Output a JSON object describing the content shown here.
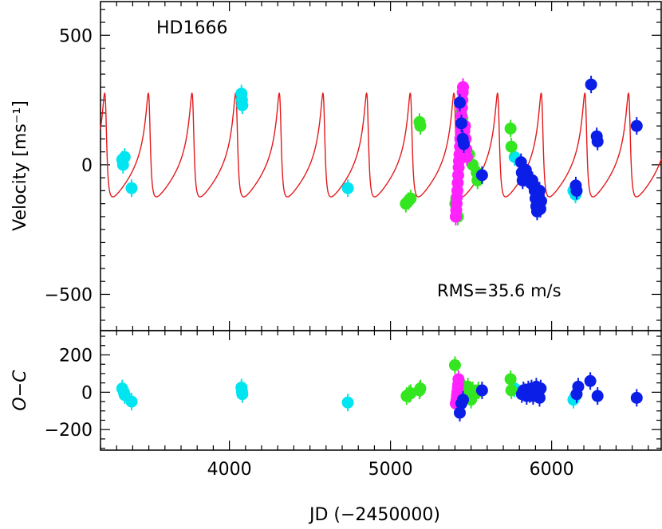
{
  "chart_data": [
    {
      "type": "scatter",
      "panel": "velocity",
      "annotation": "HD1666",
      "rms_label": "RMS=35.6 m/s",
      "ylabel": "Velocity [ms⁻¹]",
      "xlim": [
        3200,
        6680
      ],
      "ylim": [
        -640,
        630
      ],
      "yticks": [
        {
          "v": 500,
          "label": "500"
        },
        {
          "v": 0,
          "label": "0"
        },
        {
          "v": -500,
          "label": "−500"
        }
      ],
      "model": {
        "name": "Keplerian fit",
        "color": "#e31a1c",
        "period_days": 270.9,
        "k": 200,
        "ecc": 0.63,
        "omega_deg": 48,
        "offset": -8,
        "t_peri": 3233
      },
      "series": [
        {
          "color": "#00e5f0",
          "points": [
            [
              3335,
              20
            ],
            [
              3340,
              0
            ],
            [
              3350,
              30
            ],
            [
              3393,
              -90
            ],
            [
              4075,
              275
            ],
            [
              4078,
              250
            ],
            [
              4080,
              230
            ],
            [
              4735,
              -90
            ],
            [
              5770,
              30
            ],
            [
              6135,
              -100
            ],
            [
              6148,
              -115
            ]
          ]
        },
        {
          "color": "#33e620",
          "points": [
            [
              5095,
              -150
            ],
            [
              5110,
              -140
            ],
            [
              5125,
              -130
            ],
            [
              5180,
              165
            ],
            [
              5185,
              150
            ],
            [
              5402,
              -150
            ],
            [
              5408,
              -130
            ],
            [
              5418,
              -200
            ],
            [
              5438,
              200
            ],
            [
              5446,
              180
            ],
            [
              5452,
              125
            ],
            [
              5458,
              100
            ],
            [
              5465,
              50
            ],
            [
              5474,
              40
            ],
            [
              5488,
              40
            ],
            [
              5510,
              0
            ],
            [
              5535,
              -30
            ],
            [
              5540,
              -60
            ],
            [
              5550,
              -40
            ],
            [
              5745,
              140
            ],
            [
              5750,
              70
            ]
          ]
        },
        {
          "color": "#ff22ff",
          "points": [
            [
              5405,
              -200
            ],
            [
              5408,
              -175
            ],
            [
              5410,
              -150
            ],
            [
              5412,
              -125
            ],
            [
              5415,
              -100
            ],
            [
              5417,
              -70
            ],
            [
              5420,
              -40
            ],
            [
              5423,
              -10
            ],
            [
              5425,
              15
            ],
            [
              5428,
              40
            ],
            [
              5431,
              70
            ],
            [
              5433,
              100
            ],
            [
              5436,
              130
            ],
            [
              5438,
              160
            ],
            [
              5440,
              190
            ],
            [
              5443,
              220
            ],
            [
              5446,
              250
            ],
            [
              5448,
              280
            ],
            [
              5450,
              300
            ],
            [
              5458,
              130
            ],
            [
              5462,
              150
            ],
            [
              5466,
              100
            ],
            [
              5470,
              60
            ],
            [
              5474,
              30
            ]
          ]
        },
        {
          "color": "#0a1ee8",
          "points": [
            [
              5430,
              240
            ],
            [
              5440,
              160
            ],
            [
              5448,
              100
            ],
            [
              5455,
              80
            ],
            [
              5568,
              -40
            ],
            [
              5810,
              10
            ],
            [
              5815,
              -30
            ],
            [
              5820,
              -60
            ],
            [
              5830,
              -50
            ],
            [
              5840,
              -20
            ],
            [
              5850,
              -40
            ],
            [
              5860,
              -60
            ],
            [
              5870,
              -70
            ],
            [
              5880,
              -60
            ],
            [
              5890,
              -80
            ],
            [
              5895,
              -100
            ],
            [
              5900,
              -130
            ],
            [
              5905,
              -160
            ],
            [
              5910,
              -180
            ],
            [
              5915,
              -150
            ],
            [
              5920,
              -120
            ],
            [
              5925,
              -100
            ],
            [
              5930,
              -170
            ],
            [
              5935,
              -140
            ],
            [
              6150,
              -80
            ],
            [
              6155,
              -100
            ],
            [
              6245,
              310
            ],
            [
              6280,
              110
            ],
            [
              6285,
              90
            ],
            [
              6528,
              150
            ]
          ]
        }
      ]
    },
    {
      "type": "scatter",
      "panel": "residuals",
      "ylabel": "O−C",
      "xlabel": "JD (−2450000)",
      "xlim": [
        3200,
        6680
      ],
      "ylim": [
        -310,
        330
      ],
      "xticks": [
        {
          "v": 4000,
          "label": "4000"
        },
        {
          "v": 5000,
          "label": "5000"
        },
        {
          "v": 6000,
          "label": "6000"
        }
      ],
      "yticks": [
        {
          "v": 200,
          "label": "200"
        },
        {
          "v": 0,
          "label": "0"
        },
        {
          "v": -200,
          "label": "−200"
        }
      ],
      "series": [
        {
          "color": "#00e5f0",
          "points": [
            [
              3335,
              20
            ],
            [
              3345,
              0
            ],
            [
              3350,
              -15
            ],
            [
              3393,
              -50
            ],
            [
              4075,
              25
            ],
            [
              4078,
              5
            ],
            [
              4080,
              -10
            ],
            [
              4735,
              -55
            ],
            [
              5770,
              20
            ],
            [
              6135,
              -40
            ],
            [
              6148,
              -20
            ]
          ]
        },
        {
          "color": "#33e620",
          "points": [
            [
              5100,
              -20
            ],
            [
              5115,
              -10
            ],
            [
              5125,
              -5
            ],
            [
              5180,
              10
            ],
            [
              5185,
              20
            ],
            [
              5400,
              145
            ],
            [
              5420,
              -30
            ],
            [
              5440,
              -20
            ],
            [
              5460,
              20
            ],
            [
              5470,
              -10
            ],
            [
              5480,
              30
            ],
            [
              5490,
              -20
            ],
            [
              5500,
              -40
            ],
            [
              5510,
              10
            ],
            [
              5530,
              -5
            ],
            [
              5545,
              10
            ],
            [
              5745,
              70
            ],
            [
              5750,
              10
            ]
          ]
        },
        {
          "color": "#ff22ff",
          "points": [
            [
              5405,
              -60
            ],
            [
              5410,
              -40
            ],
            [
              5412,
              -20
            ],
            [
              5415,
              0
            ],
            [
              5418,
              20
            ],
            [
              5420,
              40
            ],
            [
              5422,
              70
            ]
          ]
        },
        {
          "color": "#0a1ee8",
          "points": [
            [
              5430,
              -110
            ],
            [
              5440,
              -60
            ],
            [
              5450,
              -40
            ],
            [
              5568,
              10
            ],
            [
              5815,
              -10
            ],
            [
              5825,
              10
            ],
            [
              5835,
              0
            ],
            [
              5845,
              -20
            ],
            [
              5855,
              15
            ],
            [
              5865,
              -10
            ],
            [
              5875,
              20
            ],
            [
              5885,
              -20
            ],
            [
              5895,
              0
            ],
            [
              5905,
              30
            ],
            [
              5912,
              -10
            ],
            [
              5920,
              10
            ],
            [
              5925,
              -30
            ],
            [
              5932,
              20
            ],
            [
              6155,
              -10
            ],
            [
              6165,
              30
            ],
            [
              6240,
              60
            ],
            [
              6285,
              -20
            ],
            [
              6528,
              -30
            ]
          ]
        }
      ]
    }
  ]
}
